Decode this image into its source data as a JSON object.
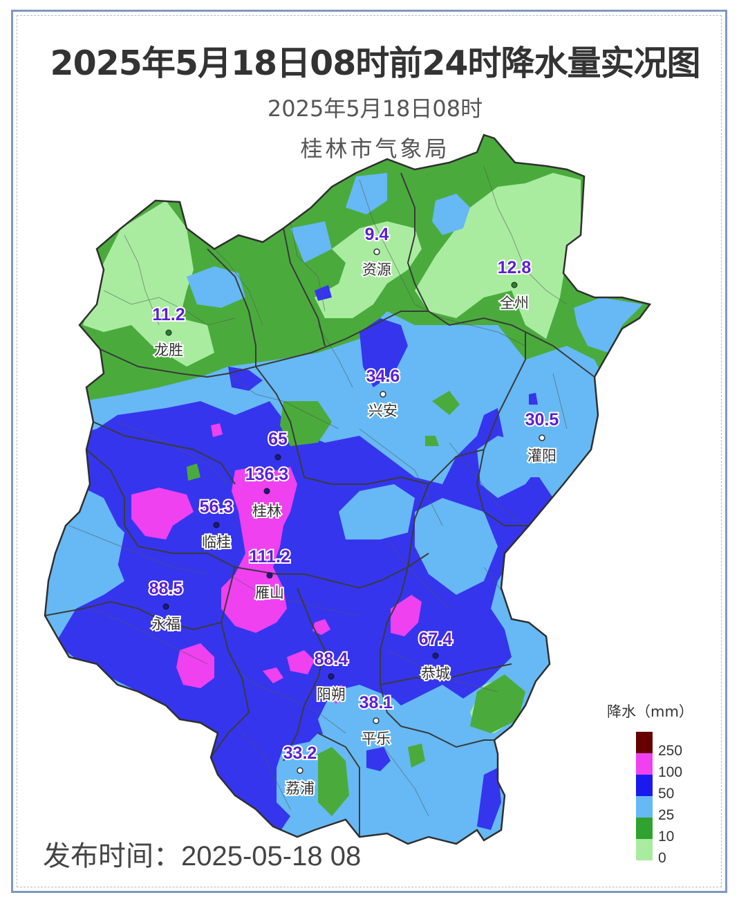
{
  "title": "2025年5月18日08时前24时降水量实况图",
  "subtitle": "2025年5月18日08时",
  "agency": "桂林市气象局",
  "release_time": "发布时间：2025-05-18 08",
  "colors": {
    "lt_green": "#a9eca0",
    "green": "#4aab3c",
    "lt_blue": "#66b9f4",
    "blue": "#3535ee",
    "magenta": "#ef41ef",
    "dark_red": "#660000",
    "boundary": "#3a3a3a"
  },
  "stations": [
    {
      "name": "资源",
      "value": "9.4"
    },
    {
      "name": "全州",
      "value": "12.8"
    },
    {
      "name": "龙胜",
      "value": "11.2"
    },
    {
      "name": "兴安",
      "value": "34.6"
    },
    {
      "name": "灌阳",
      "value": "30.5"
    },
    {
      "name": "",
      "value": "65"
    },
    {
      "name": "桂林",
      "value": "136.3"
    },
    {
      "name": "临桂",
      "value": "56.3"
    },
    {
      "name": "雁山",
      "value": "111.2"
    },
    {
      "name": "永福",
      "value": "88.5"
    },
    {
      "name": "恭城",
      "value": "67.4"
    },
    {
      "name": "阳朔",
      "value": "88.4"
    },
    {
      "name": "平乐",
      "value": "38.1"
    },
    {
      "name": "荔浦",
      "value": "33.2"
    }
  ],
  "legend": {
    "title": "降水（mm）",
    "items": [
      {
        "label": "250",
        "color": "#660000"
      },
      {
        "label": "100",
        "color": "#ef41ef"
      },
      {
        "label": "50",
        "color": "#1a1aee"
      },
      {
        "label": "25",
        "color": "#66b9f4"
      },
      {
        "label": "10",
        "color": "#2fa22f"
      },
      {
        "label": "0",
        "color": "#a9eca0"
      }
    ]
  }
}
